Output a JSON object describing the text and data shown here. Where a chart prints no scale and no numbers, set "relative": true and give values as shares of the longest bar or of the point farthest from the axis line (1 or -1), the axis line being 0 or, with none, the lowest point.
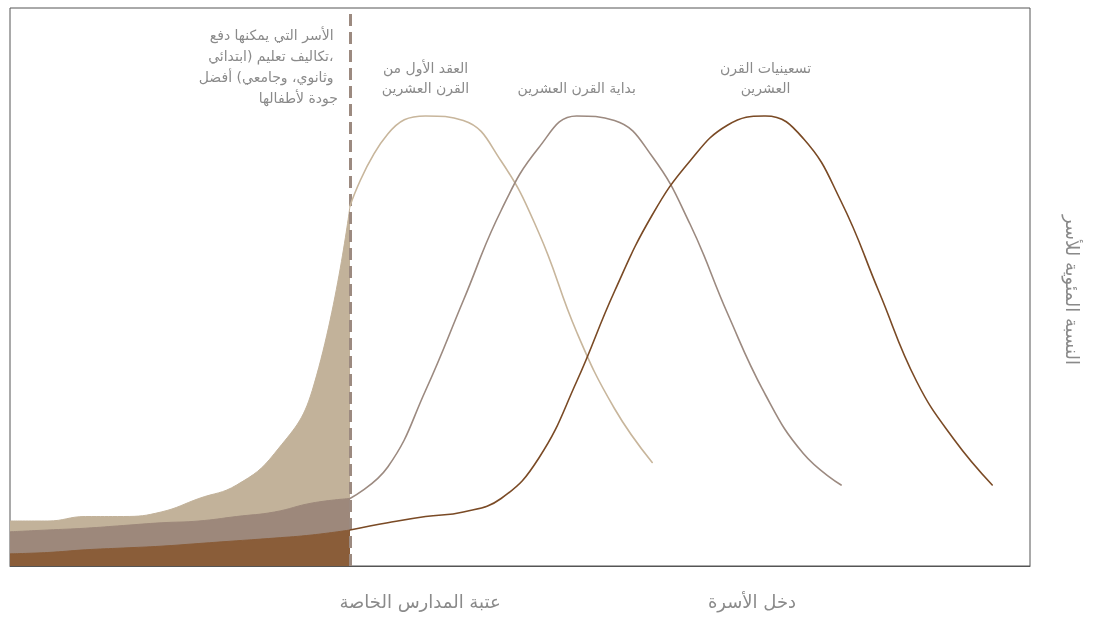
{
  "chart_data": {
    "type": "line",
    "relative": true,
    "ylabel": "النسبة المئوية للأسر",
    "xlabel": "دخل الأسرة",
    "legend": false,
    "grid": false,
    "marker": "none",
    "line_style": "solid",
    "categories": [
      null,
      null,
      null,
      null,
      null,
      null,
      null,
      null,
      null,
      null,
      null,
      null,
      null,
      null,
      null,
      null,
      null,
      null,
      null,
      null,
      null,
      null,
      null,
      null,
      null,
      null,
      null,
      null
    ],
    "annotations": [
      "الأسر التي يمكنها دفع تكاليف تعليم (ابتدائي، وثانوي، وجامعي) أفضل جودة لأطفالها",
      "عتبة المدارس الخاصة"
    ],
    "series": [
      {
        "type": "area",
        "color": "#c2b29a",
        "values": [
          0.1,
          0.1,
          0.11,
          0.11,
          0.12,
          0.15,
          0.18,
          0.25,
          0.39,
          0.8,
          null,
          null,
          null,
          null,
          null,
          null,
          null,
          null,
          null,
          null,
          null,
          null,
          null,
          null,
          null,
          null,
          null,
          null
        ]
      },
      {
        "type": "area",
        "color": "#9d887b",
        "values": [
          0.076,
          0.08,
          0.084,
          0.09,
          0.096,
          0.1,
          0.11,
          0.12,
          0.14,
          0.15,
          null,
          null,
          null,
          null,
          null,
          null,
          null,
          null,
          null,
          null,
          null,
          null,
          null,
          null,
          null,
          null,
          null,
          null
        ]
      },
      {
        "type": "area",
        "color": "#8a5d39",
        "values": [
          0.027,
          0.03,
          0.036,
          0.04,
          0.044,
          0.05,
          0.056,
          0.062,
          0.069,
          0.08,
          null,
          null,
          null,
          null,
          null,
          null,
          null,
          null,
          null,
          null,
          null,
          null,
          null,
          null,
          null,
          null,
          null,
          null
        ]
      },
      {
        "name": "العقد الأول من القرن العشرين",
        "color": "#c8b69c",
        "values": [
          null,
          null,
          null,
          null,
          null,
          null,
          null,
          null,
          null,
          0.8,
          0.96,
          1.0,
          0.99,
          0.9,
          0.74,
          0.52,
          0.35,
          0.23,
          null,
          null,
          null,
          null,
          null,
          null,
          null,
          null,
          null,
          null
        ]
      },
      {
        "name": "بداية القرن العشرين",
        "color": "#9c8a80",
        "values": [
          null,
          null,
          null,
          null,
          null,
          null,
          null,
          null,
          null,
          0.15,
          0.22,
          0.39,
          0.59,
          0.79,
          0.93,
          1.0,
          0.99,
          0.91,
          0.76,
          0.56,
          0.38,
          0.25,
          0.18,
          null,
          null,
          null,
          null,
          null
        ]
      },
      {
        "name": "تسعينيات القرن العشرين",
        "color": "#7a4a25",
        "values": [
          null,
          null,
          null,
          null,
          null,
          null,
          null,
          null,
          null,
          0.08,
          0.096,
          0.11,
          0.12,
          0.15,
          0.24,
          0.41,
          0.61,
          0.78,
          0.9,
          0.98,
          1.0,
          0.95,
          0.81,
          0.61,
          0.41,
          0.28,
          0.18,
          null
        ]
      }
    ]
  }
}
